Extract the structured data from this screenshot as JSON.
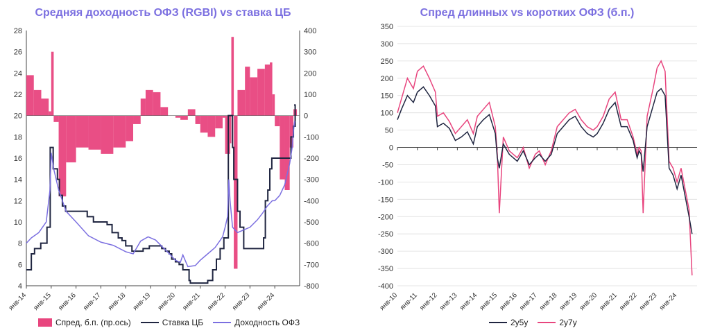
{
  "chart_data": [
    {
      "type": "line",
      "title": "Средняя доходность ОФЗ (RGBI) vs ставка ЦБ",
      "x_ticks": [
        "янв-14",
        "янв-15",
        "янв-16",
        "янв-17",
        "янв-18",
        "янв-19",
        "янв-20",
        "янв-21",
        "янв-22",
        "янв-23",
        "янв-24"
      ],
      "ylim": [
        4,
        28
      ],
      "y_ticks": [
        "28",
        "26",
        "24",
        "22",
        "20",
        "18",
        "16",
        "14",
        "12",
        "10",
        "8",
        "6",
        "4"
      ],
      "y2lim": [
        -800,
        400
      ],
      "y2_ticks": [
        "400",
        "300",
        "200",
        "100",
        "0",
        "-100",
        "-200",
        "-300",
        "-400",
        "-500",
        "-600",
        "-700",
        "-800"
      ],
      "series": [
        {
          "name": "Спред, б.п. (пр.ось)",
          "type": "bar",
          "axis": "right",
          "color": "#e8457e",
          "x": [
            2014.0,
            2014.3,
            2014.6,
            2014.9,
            2015.0,
            2015.1,
            2015.3,
            2015.6,
            2016.0,
            2016.5,
            2017.0,
            2017.5,
            2018.0,
            2018.3,
            2018.6,
            2018.8,
            2019.1,
            2019.4,
            2019.7,
            2020.0,
            2020.2,
            2020.5,
            2020.8,
            2021.0,
            2021.3,
            2021.6,
            2021.9,
            2022.0,
            2022.2,
            2022.25,
            2022.35,
            2022.5,
            2022.8,
            2023.0,
            2023.3,
            2023.6,
            2023.8,
            2023.9,
            2024.0,
            2024.2,
            2024.4,
            2024.6,
            2024.75
          ],
          "values": [
            190,
            120,
            80,
            20,
            300,
            -30,
            -380,
            -220,
            -150,
            -160,
            -180,
            -150,
            -120,
            -40,
            80,
            120,
            110,
            40,
            0,
            -10,
            -20,
            30,
            -40,
            -80,
            -100,
            -60,
            -10,
            -180,
            -130,
            370,
            -720,
            120,
            230,
            180,
            220,
            240,
            250,
            100,
            -50,
            -300,
            -350,
            -150,
            30
          ]
        },
        {
          "name": "Ставка ЦБ",
          "type": "step",
          "axis": "left",
          "color": "#1f2540",
          "x": [
            2014.0,
            2014.2,
            2014.33,
            2014.58,
            2014.83,
            2014.96,
            2015.08,
            2015.25,
            2015.33,
            2015.45,
            2015.58,
            2016.45,
            2016.7,
            2017.25,
            2017.45,
            2017.7,
            2017.85,
            2018.0,
            2018.25,
            2018.7,
            2018.95,
            2019.45,
            2019.6,
            2019.75,
            2019.85,
            2020.0,
            2020.15,
            2020.3,
            2020.55,
            2020.6,
            2021.3,
            2021.5,
            2021.65,
            2021.8,
            2021.95,
            2022.13,
            2022.3,
            2022.35,
            2022.5,
            2022.6,
            2022.75,
            2023.2,
            2023.55,
            2023.62,
            2023.72,
            2023.8,
            2023.88,
            2024.55,
            2024.65,
            2024.75,
            2024.82
          ],
          "values": [
            5.5,
            7.0,
            7.5,
            8.0,
            9.5,
            17.0,
            15.0,
            14.0,
            12.5,
            11.5,
            11.0,
            10.5,
            10.0,
            9.75,
            9.0,
            8.5,
            8.25,
            7.75,
            7.25,
            7.5,
            7.75,
            7.5,
            7.25,
            7.0,
            6.5,
            6.25,
            6.0,
            5.5,
            4.5,
            4.25,
            4.5,
            5.5,
            6.5,
            7.5,
            8.5,
            20.0,
            17.0,
            14.0,
            11.0,
            9.5,
            7.5,
            7.5,
            8.5,
            12.0,
            13.0,
            15.0,
            16.0,
            16.0,
            18.0,
            19.0,
            21.0
          ]
        },
        {
          "name": "Доходность ОФЗ",
          "type": "line",
          "axis": "left",
          "color": "#7b6fe0",
          "x": [
            2014.0,
            2014.2,
            2014.5,
            2014.8,
            2014.95,
            2015.0,
            2015.1,
            2015.3,
            2015.6,
            2016.0,
            2016.5,
            2017.0,
            2017.5,
            2018.0,
            2018.3,
            2018.6,
            2018.9,
            2019.2,
            2019.5,
            2019.8,
            2020.0,
            2020.2,
            2020.3,
            2020.5,
            2020.8,
            2021.0,
            2021.3,
            2021.6,
            2021.9,
            2022.0,
            2022.1,
            2022.15,
            2022.2,
            2022.3,
            2022.5,
            2022.8,
            2023.0,
            2023.3,
            2023.5,
            2023.7,
            2023.9,
            2024.0,
            2024.2,
            2024.4,
            2024.6,
            2024.7,
            2024.75,
            2024.8
          ],
          "values": [
            8.0,
            8.5,
            9.0,
            10.0,
            13.0,
            16.5,
            15.0,
            13.0,
            11.0,
            10.0,
            8.7,
            8.1,
            7.8,
            7.2,
            7.0,
            8.2,
            8.6,
            8.3,
            7.6,
            6.9,
            6.4,
            6.2,
            6.9,
            5.8,
            5.9,
            6.4,
            7.0,
            7.6,
            8.6,
            9.5,
            10.5,
            14.0,
            12.0,
            9.5,
            9.0,
            9.3,
            9.5,
            10.2,
            10.8,
            11.5,
            12.0,
            12.0,
            12.5,
            13.5,
            15.5,
            17.0,
            18.5,
            19.5
          ]
        }
      ],
      "legend": "bottom"
    },
    {
      "type": "line",
      "title": "Спред длинных vs коротких ОФЗ (б.п.)",
      "x_ticks": [
        "янв-10",
        "янв-11",
        "янв-12",
        "янв-13",
        "янв-14",
        "янв-15",
        "янв-16",
        "янв-17",
        "янв-18",
        "янв-19",
        "янв-20",
        "янв-21",
        "янв-22",
        "янв-23",
        "янв-24"
      ],
      "ylim": [
        -400,
        350
      ],
      "y_ticks": [
        "350",
        "300",
        "250",
        "200",
        "150",
        "100",
        "50",
        "0",
        "-50",
        "-100",
        "-150",
        "-200",
        "-250",
        "-300",
        "-350",
        "-400"
      ],
      "series": [
        {
          "name": "2у5у",
          "color": "#1f2540",
          "x": [
            2010.0,
            2010.2,
            2010.5,
            2010.8,
            2011.0,
            2011.3,
            2011.6,
            2011.9,
            2012.0,
            2012.3,
            2012.6,
            2012.9,
            2013.2,
            2013.5,
            2013.8,
            2014.0,
            2014.3,
            2014.6,
            2014.9,
            2015.0,
            2015.1,
            2015.3,
            2015.6,
            2016.0,
            2016.3,
            2016.6,
            2016.9,
            2017.1,
            2017.4,
            2017.7,
            2018.0,
            2018.3,
            2018.6,
            2018.9,
            2019.2,
            2019.5,
            2019.8,
            2020.0,
            2020.3,
            2020.6,
            2020.9,
            2021.2,
            2021.5,
            2021.8,
            2022.0,
            2022.1,
            2022.2,
            2022.3,
            2022.5,
            2022.8,
            2023.0,
            2023.2,
            2023.4,
            2023.6,
            2023.8,
            2024.0,
            2024.2,
            2024.4,
            2024.6,
            2024.75
          ],
          "values": [
            80,
            110,
            150,
            130,
            160,
            175,
            150,
            120,
            60,
            70,
            55,
            20,
            30,
            45,
            10,
            60,
            80,
            95,
            40,
            -30,
            -60,
            10,
            -20,
            -40,
            -10,
            -50,
            -30,
            -20,
            -40,
            -20,
            40,
            60,
            80,
            90,
            60,
            40,
            30,
            40,
            70,
            110,
            130,
            60,
            60,
            20,
            -30,
            -10,
            -20,
            -70,
            60,
            120,
            160,
            170,
            150,
            -60,
            -80,
            -120,
            -80,
            -140,
            -200,
            -250
          ]
        },
        {
          "name": "2у7у",
          "color": "#e8457e",
          "x": [
            2010.0,
            2010.2,
            2010.5,
            2010.8,
            2011.0,
            2011.3,
            2011.6,
            2011.9,
            2012.0,
            2012.3,
            2012.6,
            2012.9,
            2013.2,
            2013.5,
            2013.8,
            2014.0,
            2014.3,
            2014.6,
            2014.9,
            2015.0,
            2015.1,
            2015.3,
            2015.6,
            2016.0,
            2016.3,
            2016.6,
            2016.9,
            2017.1,
            2017.4,
            2017.7,
            2018.0,
            2018.3,
            2018.6,
            2018.9,
            2019.2,
            2019.5,
            2019.8,
            2020.0,
            2020.3,
            2020.6,
            2020.9,
            2021.2,
            2021.5,
            2021.8,
            2022.0,
            2022.1,
            2022.2,
            2022.3,
            2022.5,
            2022.8,
            2023.0,
            2023.2,
            2023.4,
            2023.6,
            2023.8,
            2024.0,
            2024.2,
            2024.4,
            2024.6,
            2024.75
          ],
          "values": [
            100,
            140,
            200,
            170,
            220,
            235,
            200,
            160,
            90,
            100,
            75,
            40,
            60,
            80,
            40,
            90,
            110,
            130,
            60,
            -20,
            -190,
            30,
            -10,
            -30,
            0,
            -60,
            -20,
            -10,
            -50,
            -10,
            60,
            80,
            100,
            110,
            80,
            60,
            50,
            60,
            90,
            140,
            160,
            80,
            80,
            30,
            -20,
            0,
            -10,
            -190,
            90,
            170,
            230,
            250,
            220,
            -40,
            -60,
            -100,
            -60,
            -120,
            -180,
            -370
          ]
        }
      ],
      "legend": "bottom"
    }
  ]
}
